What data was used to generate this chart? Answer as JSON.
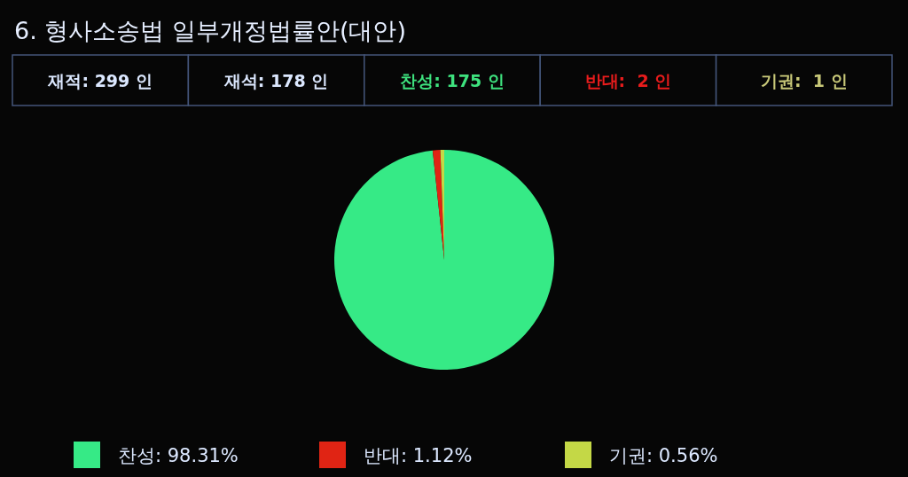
{
  "chart_data": {
    "type": "pie",
    "title": "6. 형사소송법 일부개정법률안(대안)",
    "annotations": [
      "재적: 299 인",
      "재석: 178 인",
      "찬성: 175 인",
      "반대:  2 인",
      "기권:  1 인"
    ],
    "categories": [
      "찬성",
      "반대",
      "기권"
    ],
    "values": [
      98.31,
      1.12,
      0.56
    ],
    "value_labels": [
      "98.31%",
      "1.12%",
      "0.56%"
    ],
    "colors": [
      "#36ea86",
      "#e02414",
      "#c4d846"
    ],
    "legend": "bottom"
  }
}
